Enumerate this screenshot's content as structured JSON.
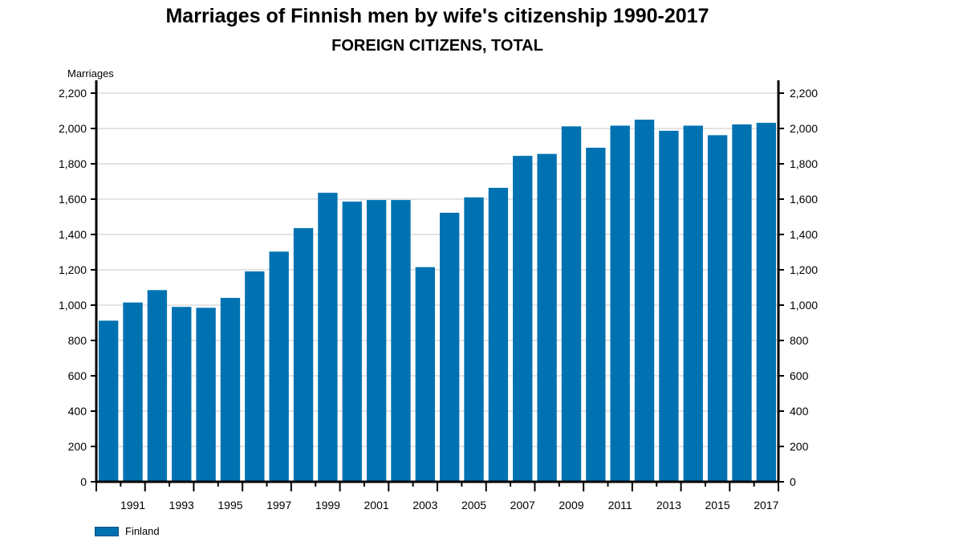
{
  "chart_data": {
    "type": "bar",
    "title": "Marriages of Finnish men by wife's citizenship 1990-2017",
    "subtitle": "FOREIGN CITIZENS, TOTAL",
    "ylabel": "Marriages",
    "xlabel": "",
    "ylim": [
      0,
      2200
    ],
    "yticks": [
      0,
      200,
      400,
      600,
      800,
      1000,
      1200,
      1400,
      1600,
      1800,
      2000,
      2200
    ],
    "ytick_labels": [
      "0",
      "200",
      "400",
      "600",
      "800",
      "1,000",
      "1,200",
      "1,400",
      "1,600",
      "1,800",
      "2,000",
      "2,200"
    ],
    "grid": true,
    "legend_position": "bottom-left",
    "color": "#0072b2",
    "categories": [
      1990,
      1991,
      1992,
      1993,
      1994,
      1995,
      1996,
      1997,
      1998,
      1999,
      2000,
      2001,
      2002,
      2003,
      2004,
      2005,
      2006,
      2007,
      2008,
      2009,
      2010,
      2011,
      2012,
      2013,
      2014,
      2015,
      2016,
      2017
    ],
    "xtick_labels": [
      "1991",
      "1993",
      "1995",
      "1997",
      "1999",
      "2001",
      "2003",
      "2005",
      "2007",
      "2009",
      "2011",
      "2013",
      "2015",
      "2017"
    ],
    "series": [
      {
        "name": "Finland",
        "values": [
          912,
          1015,
          1085,
          990,
          985,
          1041,
          1191,
          1303,
          1436,
          1636,
          1586,
          1595,
          1595,
          1215,
          1523,
          1610,
          1664,
          1845,
          1856,
          2012,
          1891,
          2016,
          2050,
          1987,
          2016,
          1962,
          2023,
          2032
        ]
      }
    ]
  }
}
